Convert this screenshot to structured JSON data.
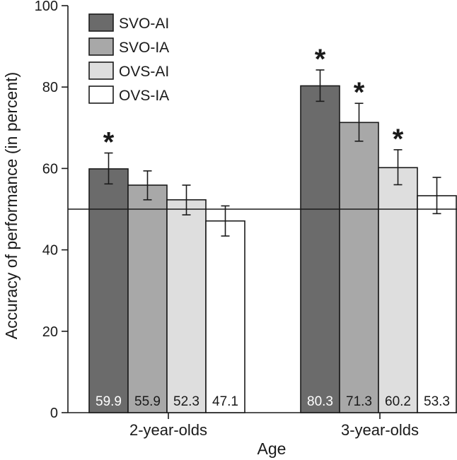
{
  "chart_data": {
    "type": "bar",
    "title": "",
    "xlabel": "Age",
    "ylabel": "Accuracy of performance (in percent)",
    "ylim": [
      0,
      100
    ],
    "yticks": [
      0,
      20,
      40,
      60,
      80,
      100
    ],
    "categories": [
      "2-year-olds",
      "3-year-olds"
    ],
    "reference_line": 50,
    "grid": false,
    "legend_position": "top-left",
    "series": [
      {
        "name": "SVO-AI",
        "color": "#6b6b6b",
        "label_color": "#ffffff",
        "values": [
          59.9,
          80.3
        ],
        "error": [
          [
            56.2,
            63.8
          ],
          [
            76.5,
            84.2
          ]
        ],
        "significant": [
          true,
          true
        ]
      },
      {
        "name": "SVO-IA",
        "color": "#a8a8a8",
        "label_color": "#1a1a1a",
        "values": [
          55.9,
          71.3
        ],
        "error": [
          [
            52.3,
            59.4
          ],
          [
            66.7,
            76.0
          ]
        ],
        "significant": [
          false,
          true
        ]
      },
      {
        "name": "OVS-AI",
        "color": "#dedede",
        "label_color": "#1a1a1a",
        "values": [
          52.3,
          60.2
        ],
        "error": [
          [
            48.6,
            55.9
          ],
          [
            56.0,
            64.6
          ]
        ],
        "significant": [
          false,
          true
        ]
      },
      {
        "name": "OVS-IA",
        "color": "#ffffff",
        "label_color": "#1a1a1a",
        "values": [
          47.1,
          53.3
        ],
        "error": [
          [
            43.4,
            50.8
          ],
          [
            48.9,
            57.8
          ]
        ],
        "significant": [
          false,
          false
        ]
      }
    ],
    "significance_marker": "*"
  }
}
